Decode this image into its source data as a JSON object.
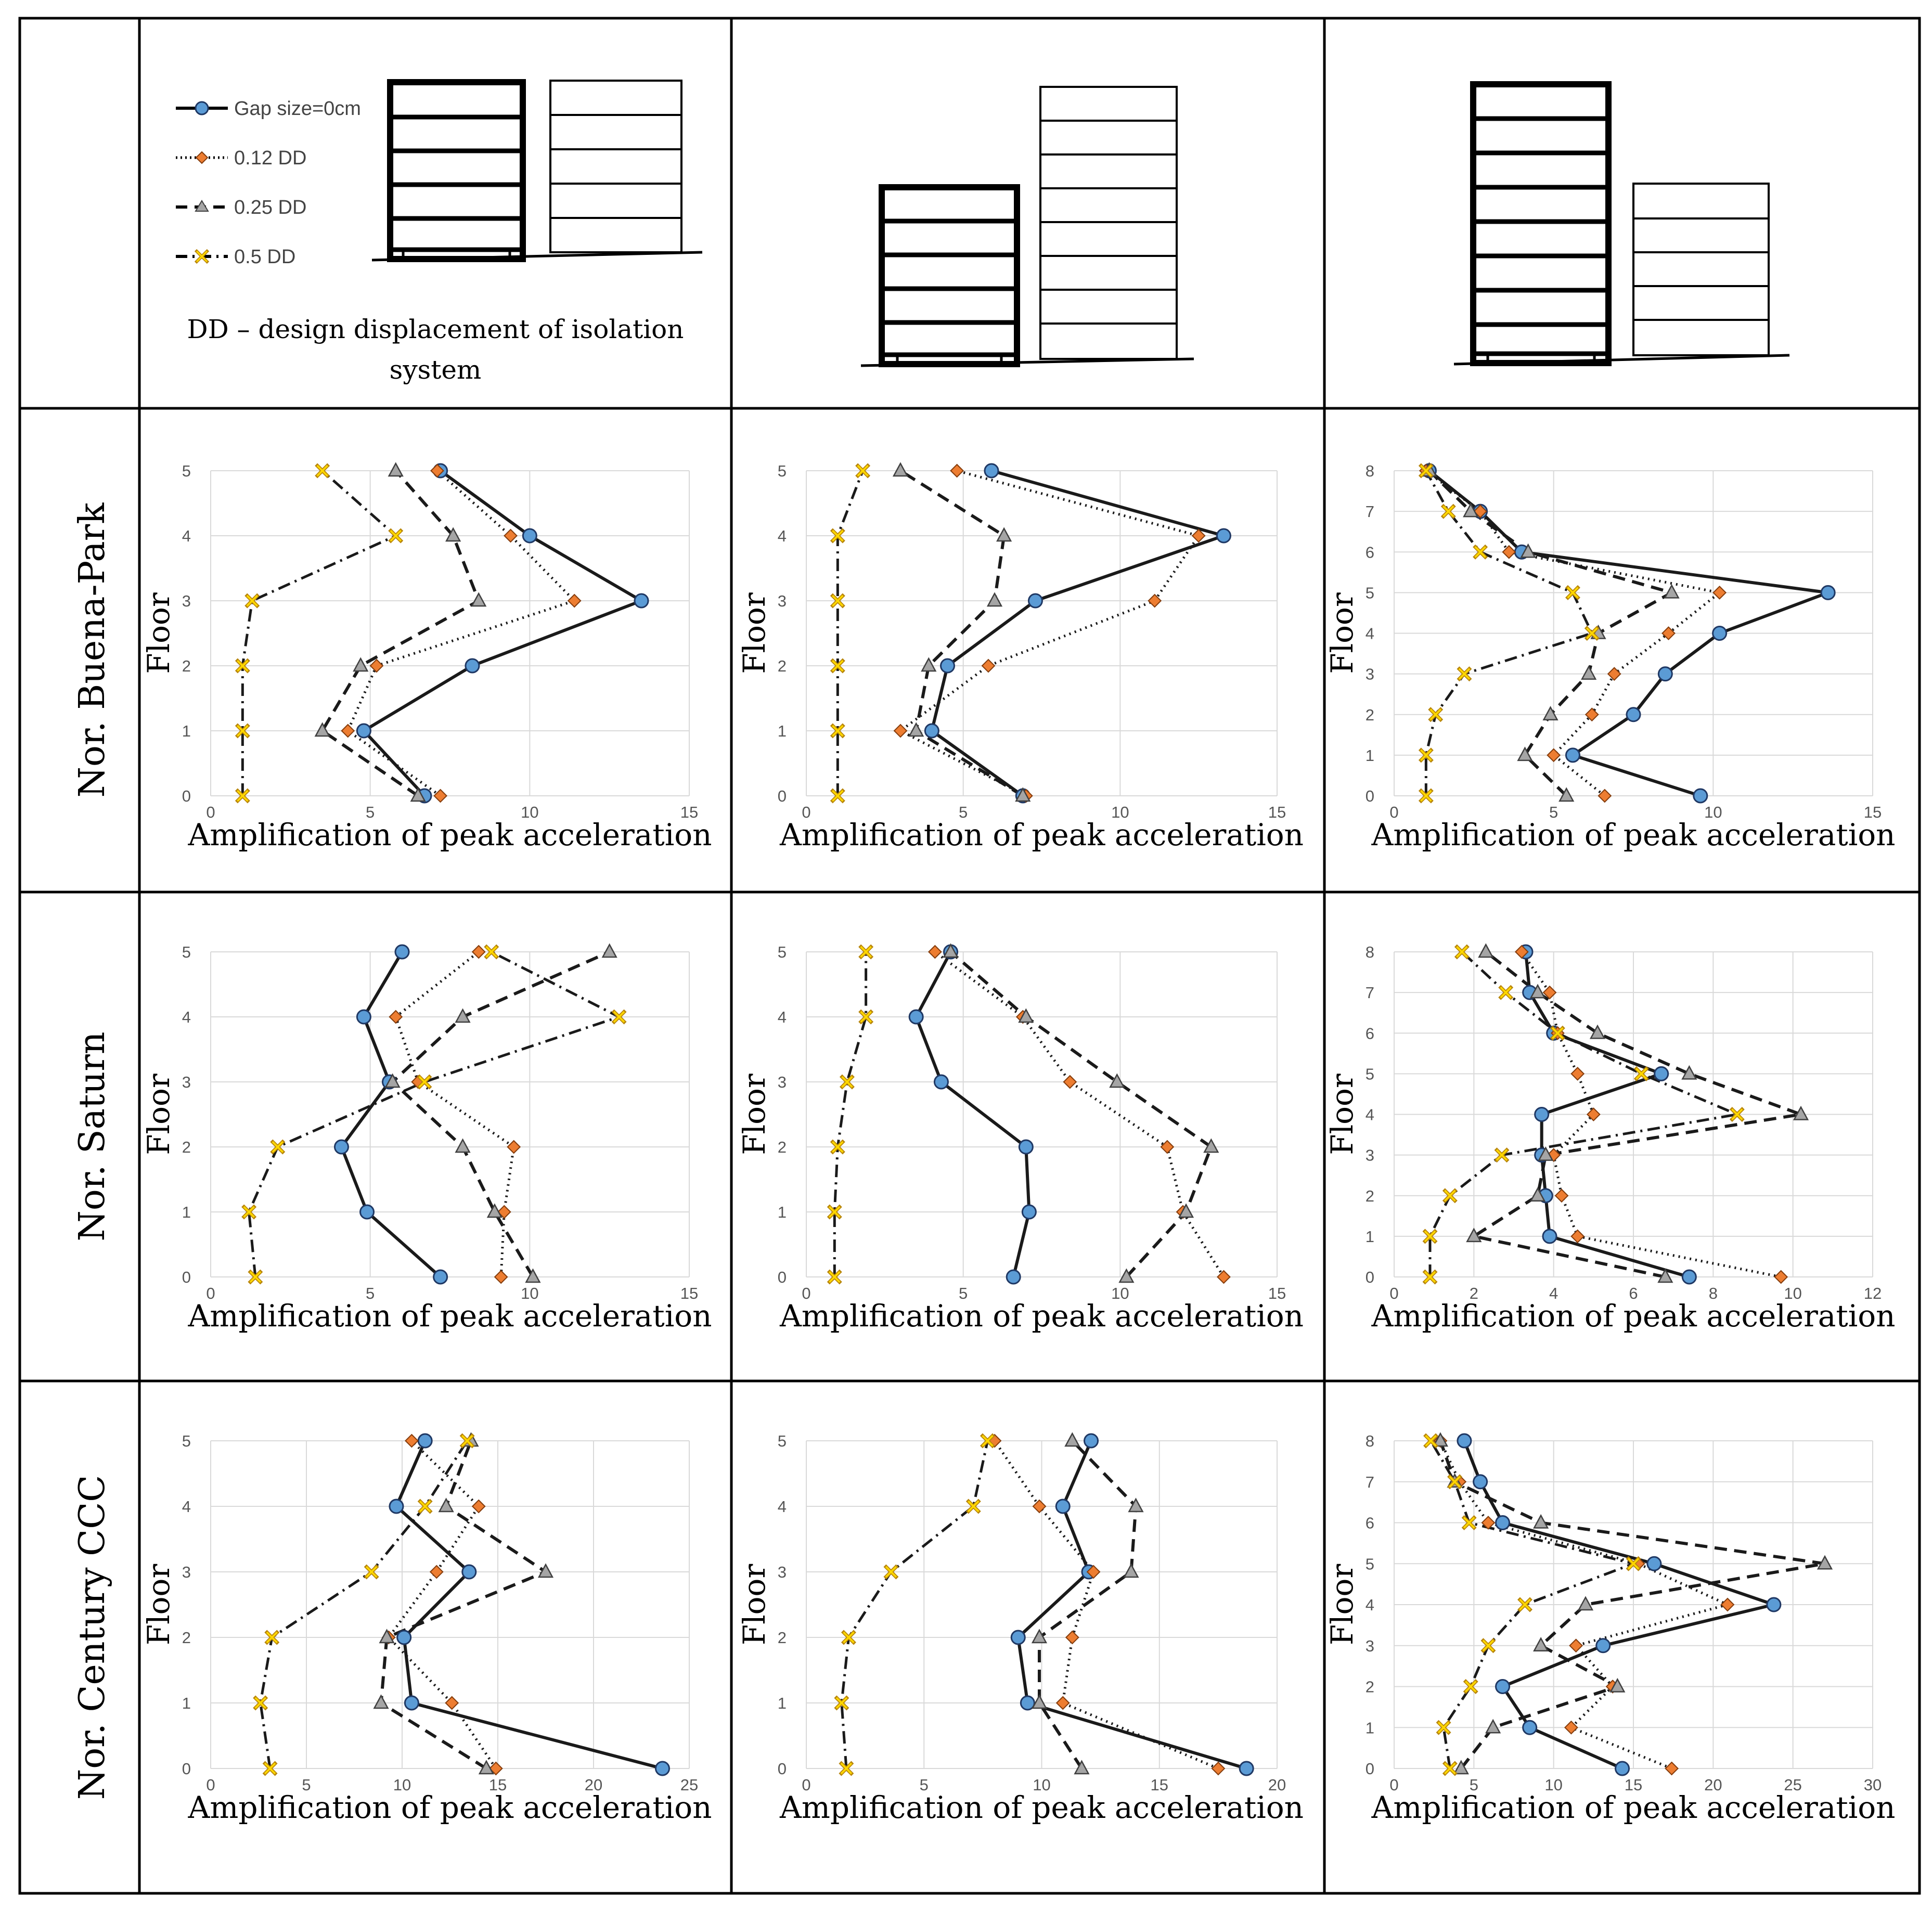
{
  "header": {
    "legend": [
      {
        "label": "Gap size=0cm",
        "style": "solid",
        "marker": "circle"
      },
      {
        "label": "0.12 DD",
        "style": "dotted",
        "marker": "diamond"
      },
      {
        "label": "0.25 DD",
        "style": "dashed",
        "marker": "triangle"
      },
      {
        "label": "0.5 DD",
        "style": "dashdot",
        "marker": "x"
      }
    ],
    "dd_note_line1": "DD – design displacement of isolation",
    "dd_note_line2": "system"
  },
  "rows": [
    {
      "title": "Nor. Buena-Park"
    },
    {
      "title": "Nor. Saturn"
    },
    {
      "title": "Nor. Century CCC"
    }
  ],
  "colors": {
    "gap0": "#5b9bd5",
    "dd012": "#ed7d31",
    "dd025": "#a5a5a5",
    "dd05": "#ffd700",
    "x_stroke": "#b8860b",
    "gridline": "#d9d9d9"
  },
  "axis_labels": {
    "x": "Amplification of peak acceleration",
    "y": "Floor"
  },
  "chart_data": [
    {
      "type": "line",
      "id": "r1c1",
      "xlabel": "Amplification of peak acceleration",
      "ylabel": "Floor",
      "xlim": [
        0,
        15
      ],
      "xticks": [
        0,
        5,
        10,
        15
      ],
      "ylim": [
        0,
        5
      ],
      "yticks": [
        0,
        1,
        2,
        3,
        4,
        5
      ],
      "series": [
        {
          "name": "Gap size=0cm",
          "x": [
            6.7,
            4.8,
            8.2,
            13.5,
            10.0,
            7.2
          ],
          "y": [
            0,
            1,
            2,
            3,
            4,
            5
          ]
        },
        {
          "name": "0.12 DD",
          "x": [
            7.2,
            4.3,
            5.2,
            11.4,
            9.4,
            7.1
          ],
          "y": [
            0,
            1,
            2,
            3,
            4,
            5
          ]
        },
        {
          "name": "0.25 DD",
          "x": [
            6.5,
            3.5,
            4.7,
            8.4,
            7.6,
            5.8
          ],
          "y": [
            0,
            1,
            2,
            3,
            4,
            5
          ]
        },
        {
          "name": "0.5 DD",
          "x": [
            1.0,
            1.0,
            1.0,
            1.3,
            5.8,
            3.5
          ],
          "y": [
            0,
            1,
            2,
            3,
            4,
            5
          ]
        }
      ]
    },
    {
      "type": "line",
      "id": "r1c2",
      "xlabel": "Amplification of peak acceleration",
      "ylabel": "Floor",
      "xlim": [
        0,
        15
      ],
      "xticks": [
        0,
        5,
        10,
        15
      ],
      "ylim": [
        0,
        5
      ],
      "yticks": [
        0,
        1,
        2,
        3,
        4,
        5
      ],
      "series": [
        {
          "name": "Gap size=0cm",
          "x": [
            6.9,
            4.0,
            4.5,
            7.3,
            13.3,
            5.9
          ],
          "y": [
            0,
            1,
            2,
            3,
            4,
            5
          ]
        },
        {
          "name": "0.12 DD",
          "x": [
            7.0,
            3.0,
            5.8,
            11.1,
            12.5,
            4.8
          ],
          "y": [
            0,
            1,
            2,
            3,
            4,
            5
          ]
        },
        {
          "name": "0.25 DD",
          "x": [
            6.9,
            3.5,
            3.9,
            6.0,
            6.3,
            3.0
          ],
          "y": [
            0,
            1,
            2,
            3,
            4,
            5
          ]
        },
        {
          "name": "0.5 DD",
          "x": [
            1.0,
            1.0,
            1.0,
            1.0,
            1.0,
            1.8
          ],
          "y": [
            0,
            1,
            2,
            3,
            4,
            5
          ]
        }
      ]
    },
    {
      "type": "line",
      "id": "r1c3",
      "xlabel": "Amplification of peak acceleration",
      "ylabel": "Floor",
      "xlim": [
        0,
        15
      ],
      "xticks": [
        0,
        5,
        10,
        15
      ],
      "ylim": [
        0,
        8
      ],
      "yticks": [
        0,
        1,
        2,
        3,
        4,
        5,
        6,
        7,
        8
      ],
      "series": [
        {
          "name": "Gap size=0cm",
          "x": [
            9.6,
            5.6,
            7.5,
            8.5,
            10.2,
            13.6,
            4.0,
            2.7,
            1.1
          ],
          "y": [
            0,
            1,
            2,
            3,
            4,
            5,
            6,
            7,
            8
          ]
        },
        {
          "name": "0.12 DD",
          "x": [
            6.6,
            5.0,
            6.2,
            6.9,
            8.6,
            10.2,
            3.6,
            2.7,
            1.0
          ],
          "y": [
            0,
            1,
            2,
            3,
            4,
            5,
            6,
            7,
            8
          ]
        },
        {
          "name": "0.25 DD",
          "x": [
            5.4,
            4.1,
            4.9,
            6.1,
            6.4,
            8.7,
            4.2,
            2.4,
            1.1
          ],
          "y": [
            0,
            1,
            2,
            3,
            4,
            5,
            6,
            7,
            8
          ]
        },
        {
          "name": "0.5 DD",
          "x": [
            1.0,
            1.0,
            1.3,
            2.2,
            6.2,
            5.6,
            2.7,
            1.7,
            1.0
          ],
          "y": [
            0,
            1,
            2,
            3,
            4,
            5,
            6,
            7,
            8
          ]
        }
      ]
    },
    {
      "type": "line",
      "id": "r2c1",
      "xlabel": "Amplification of peak acceleration",
      "ylabel": "Floor",
      "xlim": [
        0,
        15
      ],
      "xticks": [
        0,
        5,
        10,
        15
      ],
      "ylim": [
        0,
        5
      ],
      "yticks": [
        0,
        1,
        2,
        3,
        4,
        5
      ],
      "series": [
        {
          "name": "Gap size=0cm",
          "x": [
            7.2,
            4.9,
            4.1,
            5.6,
            4.8,
            6.0
          ],
          "y": [
            0,
            1,
            2,
            3,
            4,
            5
          ]
        },
        {
          "name": "0.12 DD",
          "x": [
            9.1,
            9.2,
            9.5,
            6.5,
            5.8,
            8.4
          ],
          "y": [
            0,
            1,
            2,
            3,
            4,
            5
          ]
        },
        {
          "name": "0.25 DD",
          "x": [
            10.1,
            8.9,
            7.9,
            5.7,
            7.9,
            12.5
          ],
          "y": [
            0,
            1,
            2,
            3,
            4,
            5
          ]
        },
        {
          "name": "0.5 DD",
          "x": [
            1.4,
            1.2,
            2.1,
            6.7,
            12.8,
            8.8
          ],
          "y": [
            0,
            1,
            2,
            3,
            4,
            5
          ]
        }
      ]
    },
    {
      "type": "line",
      "id": "r2c2",
      "xlabel": "Amplification of peak acceleration",
      "ylabel": "Floor",
      "xlim": [
        0,
        15
      ],
      "xticks": [
        0,
        5,
        10,
        15
      ],
      "ylim": [
        0,
        5
      ],
      "yticks": [
        0,
        1,
        2,
        3,
        4,
        5
      ],
      "series": [
        {
          "name": "Gap size=0cm",
          "x": [
            6.6,
            7.1,
            7.0,
            4.3,
            3.5,
            4.6
          ],
          "y": [
            0,
            1,
            2,
            3,
            4,
            5
          ]
        },
        {
          "name": "0.12 DD",
          "x": [
            13.3,
            12.0,
            11.5,
            8.4,
            6.9,
            4.1
          ],
          "y": [
            0,
            1,
            2,
            3,
            4,
            5
          ]
        },
        {
          "name": "0.25 DD",
          "x": [
            10.2,
            12.1,
            12.9,
            9.9,
            7.0,
            4.6
          ],
          "y": [
            0,
            1,
            2,
            3,
            4,
            5
          ]
        },
        {
          "name": "0.5 DD",
          "x": [
            0.9,
            0.9,
            1.0,
            1.3,
            1.9,
            1.9
          ],
          "y": [
            0,
            1,
            2,
            3,
            4,
            5
          ]
        }
      ]
    },
    {
      "type": "line",
      "id": "r2c3",
      "xlabel": "Amplification of peak acceleration",
      "ylabel": "Floor",
      "xlim": [
        0,
        12
      ],
      "xticks": [
        0,
        2,
        4,
        6,
        8,
        10,
        12
      ],
      "ylim": [
        0,
        8
      ],
      "yticks": [
        0,
        1,
        2,
        3,
        4,
        5,
        6,
        7,
        8
      ],
      "series": [
        {
          "name": "Gap size=0cm",
          "x": [
            7.4,
            3.9,
            3.8,
            3.7,
            3.7,
            6.7,
            4.0,
            3.4,
            3.3
          ],
          "y": [
            0,
            1,
            2,
            3,
            4,
            5,
            6,
            7,
            8
          ]
        },
        {
          "name": "0.12 DD",
          "x": [
            9.7,
            4.6,
            4.2,
            4.0,
            5.0,
            4.6,
            4.1,
            3.9,
            3.2
          ],
          "y": [
            0,
            1,
            2,
            3,
            4,
            5,
            6,
            7,
            8
          ]
        },
        {
          "name": "0.25 DD",
          "x": [
            6.8,
            2.0,
            3.6,
            3.8,
            10.2,
            7.4,
            5.1,
            3.6,
            2.3
          ],
          "y": [
            0,
            1,
            2,
            3,
            4,
            5,
            6,
            7,
            8
          ]
        },
        {
          "name": "0.5 DD",
          "x": [
            0.9,
            0.9,
            1.4,
            2.7,
            8.6,
            6.2,
            4.1,
            2.8,
            1.7
          ],
          "y": [
            0,
            1,
            2,
            3,
            4,
            5,
            6,
            7,
            8
          ]
        }
      ]
    },
    {
      "type": "line",
      "id": "r3c1",
      "xlabel": "Amplification of peak acceleration",
      "ylabel": "Floor",
      "xlim": [
        0,
        25
      ],
      "xticks": [
        0,
        5,
        10,
        15,
        20,
        25
      ],
      "ylim": [
        0,
        5
      ],
      "yticks": [
        0,
        1,
        2,
        3,
        4,
        5
      ],
      "series": [
        {
          "name": "Gap size=0cm",
          "x": [
            23.6,
            10.5,
            10.1,
            13.5,
            9.7,
            11.2
          ],
          "y": [
            0,
            1,
            2,
            3,
            4,
            5
          ]
        },
        {
          "name": "0.12 DD",
          "x": [
            14.9,
            12.6,
            9.3,
            11.8,
            14.0,
            10.5
          ],
          "y": [
            0,
            1,
            2,
            3,
            4,
            5
          ]
        },
        {
          "name": "0.25 DD",
          "x": [
            14.4,
            8.9,
            9.2,
            17.5,
            12.3,
            13.6
          ],
          "y": [
            0,
            1,
            2,
            3,
            4,
            5
          ]
        },
        {
          "name": "0.5 DD",
          "x": [
            3.1,
            2.6,
            3.2,
            8.4,
            11.2,
            13.4
          ],
          "y": [
            0,
            1,
            2,
            3,
            4,
            5
          ]
        }
      ]
    },
    {
      "type": "line",
      "id": "r3c2",
      "xlabel": "Amplification of peak acceleration",
      "ylabel": "Floor",
      "xlim": [
        0,
        20
      ],
      "xticks": [
        0,
        5,
        10,
        15,
        20
      ],
      "ylim": [
        0,
        5
      ],
      "yticks": [
        0,
        1,
        2,
        3,
        4,
        5
      ],
      "series": [
        {
          "name": "Gap size=0cm",
          "x": [
            18.7,
            9.4,
            9.0,
            12.0,
            10.9,
            12.1
          ],
          "y": [
            0,
            1,
            2,
            3,
            4,
            5
          ]
        },
        {
          "name": "0.12 DD",
          "x": [
            17.5,
            10.9,
            11.3,
            12.2,
            9.9,
            8.0
          ],
          "y": [
            0,
            1,
            2,
            3,
            4,
            5
          ]
        },
        {
          "name": "0.25 DD",
          "x": [
            11.7,
            9.9,
            9.9,
            13.8,
            14.0,
            11.3
          ],
          "y": [
            0,
            1,
            2,
            3,
            4,
            5
          ]
        },
        {
          "name": "0.5 DD",
          "x": [
            1.7,
            1.5,
            1.8,
            3.6,
            7.1,
            7.7
          ],
          "y": [
            0,
            1,
            2,
            3,
            4,
            5
          ]
        }
      ]
    },
    {
      "type": "line",
      "id": "r3c3",
      "xlabel": "Amplification of peak acceleration",
      "ylabel": "Floor",
      "xlim": [
        0,
        30
      ],
      "xticks": [
        0,
        5,
        10,
        15,
        20,
        25,
        30
      ],
      "ylim": [
        0,
        8
      ],
      "yticks": [
        0,
        1,
        2,
        3,
        4,
        5,
        6,
        7,
        8
      ],
      "series": [
        {
          "name": "Gap size=0cm",
          "x": [
            14.3,
            8.5,
            6.8,
            13.1,
            23.8,
            16.3,
            6.8,
            5.4,
            4.4
          ],
          "y": [
            0,
            1,
            2,
            3,
            4,
            5,
            6,
            7,
            8
          ]
        },
        {
          "name": "0.12 DD",
          "x": [
            17.4,
            11.1,
            13.7,
            11.4,
            20.9,
            15.3,
            5.9,
            4.1,
            2.9
          ],
          "y": [
            0,
            1,
            2,
            3,
            4,
            5,
            6,
            7,
            8
          ]
        },
        {
          "name": "0.25 DD",
          "x": [
            4.2,
            6.2,
            14.0,
            9.2,
            12.0,
            27.0,
            9.2,
            3.8,
            2.9
          ],
          "y": [
            0,
            1,
            2,
            3,
            4,
            5,
            6,
            7,
            8
          ]
        },
        {
          "name": "0.5 DD",
          "x": [
            3.5,
            3.1,
            4.8,
            5.9,
            8.2,
            15.0,
            4.7,
            3.8,
            2.3
          ],
          "y": [
            0,
            1,
            2,
            3,
            4,
            5,
            6,
            7,
            8
          ]
        }
      ]
    }
  ]
}
